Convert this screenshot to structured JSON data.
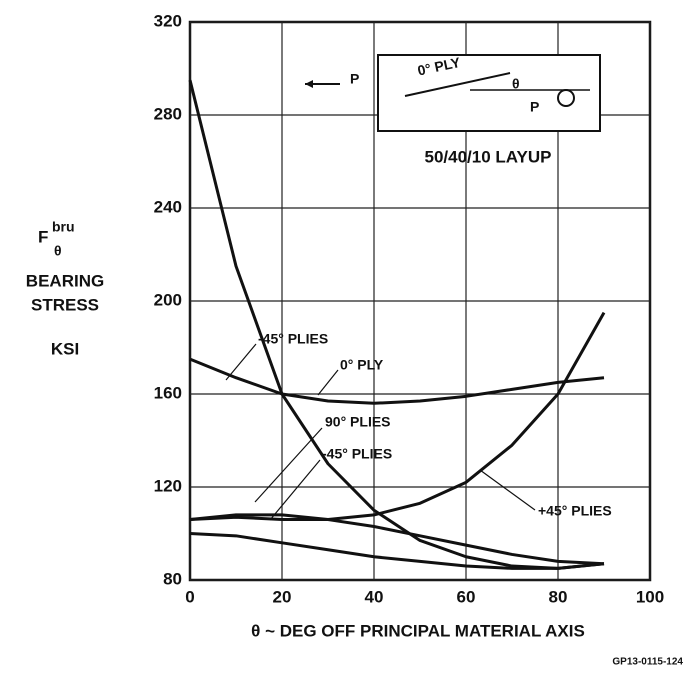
{
  "chart_data": {
    "type": "line",
    "x": [
      0,
      10,
      20,
      30,
      40,
      50,
      60,
      70,
      80,
      90
    ],
    "series": [
      {
        "name": "-45° PLIES",
        "color": "#111111",
        "values": [
          295,
          215,
          160,
          130,
          110,
          97,
          90,
          86,
          85,
          87
        ]
      },
      {
        "name": "0° PLY",
        "color": "#111111",
        "values": [
          175,
          167,
          160,
          157,
          156,
          157,
          159,
          162,
          165,
          167
        ]
      },
      {
        "name": "+45° PLIES",
        "color": "#111111",
        "values": [
          106,
          107,
          106,
          106,
          108,
          113,
          122,
          138,
          160,
          195
        ]
      },
      {
        "name": "90° PLIES",
        "color": "#111111",
        "values": [
          106,
          108,
          108,
          106,
          103,
          99,
          95,
          91,
          88,
          87
        ]
      },
      {
        "name": "-45°  PLIES",
        "color": "#111111",
        "values": [
          100,
          99,
          96,
          93,
          90,
          88,
          86,
          85,
          85,
          87
        ]
      }
    ],
    "xlim": [
      0,
      100
    ],
    "xticks": [
      0,
      20,
      40,
      60,
      80,
      100
    ],
    "ylim": [
      80,
      320
    ],
    "yticks": [
      80,
      120,
      160,
      200,
      240,
      280,
      320
    ],
    "grid": true,
    "x_label": "θ ~ DEG OFF PRINCIPAL MATERIAL AXIS",
    "y_label": {
      "symbol": "F",
      "superscript": "bru",
      "subscript": "θ",
      "lines": [
        "BEARING",
        "STRESS",
        "KSI"
      ]
    },
    "inset": {
      "load_left": "P",
      "ply": "0° PLY",
      "angle": "θ",
      "load_right": "P",
      "layup": "50/40/10 LAYUP"
    },
    "footer": "GP13-0115-124"
  }
}
